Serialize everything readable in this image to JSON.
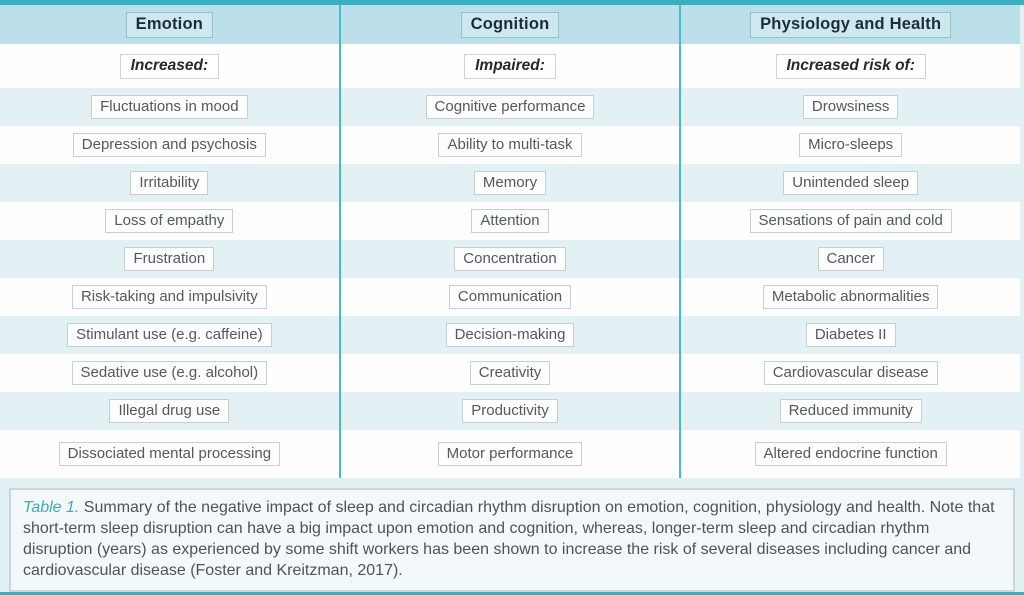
{
  "table": {
    "columns": [
      {
        "header": "Emotion",
        "items": [
          "Increased:",
          "Fluctuations in mood",
          "Depression and psychosis",
          "Irritability",
          "Loss of empathy",
          "Frustration",
          "Risk-taking and impulsivity",
          "Stimulant use (e.g. caffeine)",
          "Sedative use (e.g. alcohol)",
          "Illegal drug use",
          "Dissociated mental processing"
        ]
      },
      {
        "header": "Cognition",
        "items": [
          "Impaired:",
          "Cognitive performance",
          "Ability to multi-task",
          "Memory",
          "Attention",
          "Concentration",
          "Communication",
          "Decision-making",
          "Creativity",
          "Productivity",
          "Motor performance"
        ]
      },
      {
        "header": "Physiology and Health",
        "items": [
          "Increased risk of:",
          "Drowsiness",
          "Micro-sleeps",
          "Unintended sleep",
          "Sensations of pain and cold",
          "Cancer",
          "Metabolic abnormalities",
          "Diabetes II",
          "Cardiovascular disease",
          "Reduced immunity",
          "Altered endocrine function"
        ]
      }
    ]
  },
  "caption": {
    "label": "Table 1.",
    "text": " Summary of the negative impact of sleep and circadian rhythm disruption on emotion, cognition, physiology and health. Note that short-term sleep disruption can have a big impact upon emotion and cognition, whereas, longer-term sleep and circadian rhythm disruption (years) as experienced by some shift workers has been shown to increase the risk of several diseases including cancer and cardiovascular disease (Foster and Kreitzman, 2017)."
  },
  "colors": {
    "accent_teal": "#3bafc0",
    "header_bg": "#bce0ea",
    "stripe_cyan": "#e3f1f5",
    "row_white": "#fdfefd",
    "outer_bg": "#e3f0f4",
    "caption_label_teal": "#41aab9"
  }
}
